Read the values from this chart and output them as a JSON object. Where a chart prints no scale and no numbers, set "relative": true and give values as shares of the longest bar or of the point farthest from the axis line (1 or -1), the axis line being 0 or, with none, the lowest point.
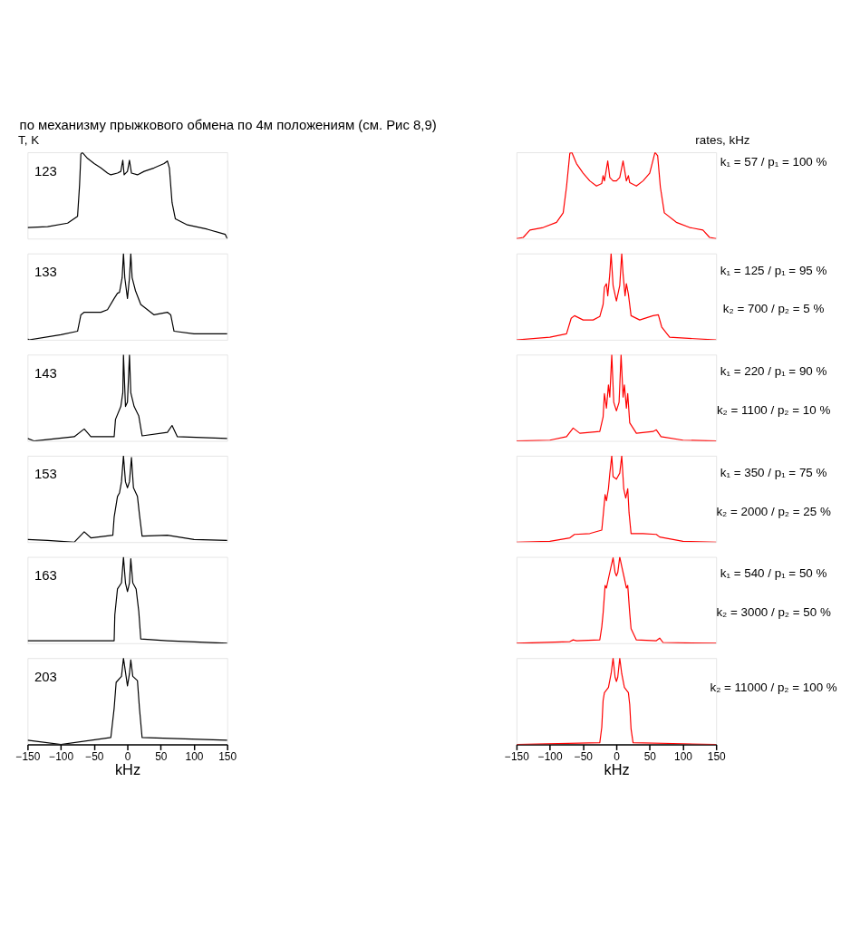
{
  "chart_data": [
    {
      "type": "line",
      "relative": true,
      "tick_labels": false,
      "xlim": [
        -150,
        150
      ],
      "annotations": [
        "по механизму прыжкового обмена по 4м положениям (см. Рис 8,9)",
        "T, K",
        "123"
      ],
      "x": [
        -150,
        -120,
        -90,
        -75,
        -72,
        -70,
        -68,
        -60,
        -50,
        -40,
        -30,
        -25,
        -15,
        -10,
        -7,
        -5,
        0,
        3,
        6,
        15,
        25,
        40,
        55,
        60,
        63,
        67,
        72,
        90,
        120,
        147,
        150
      ],
      "series": [
        {
          "color": "#000000",
          "values": [
            0.13,
            0.14,
            0.18,
            0.26,
            0.62,
            0.98,
            1.0,
            0.93,
            0.87,
            0.82,
            0.76,
            0.74,
            0.76,
            0.78,
            0.91,
            0.74,
            0.78,
            0.91,
            0.76,
            0.74,
            0.78,
            0.82,
            0.87,
            0.9,
            0.82,
            0.42,
            0.23,
            0.16,
            0.11,
            0.05,
            0.0
          ]
        }
      ]
    },
    {
      "type": "line",
      "relative": true,
      "tick_labels": false,
      "xlim": [
        -150,
        150
      ],
      "annotations": [
        "133"
      ],
      "x": [
        -150,
        -148,
        -100,
        -75,
        -70,
        -65,
        -40,
        -30,
        -20,
        -15,
        -12,
        -8,
        -6,
        -4,
        0,
        3,
        5,
        7,
        12,
        20,
        40,
        60,
        65,
        70,
        100,
        150
      ],
      "series": [
        {
          "color": "#000000",
          "values": [
            0.01,
            0.0,
            0.06,
            0.1,
            0.29,
            0.32,
            0.32,
            0.35,
            0.48,
            0.54,
            0.55,
            0.72,
            1.0,
            0.72,
            0.48,
            0.72,
            1.0,
            0.72,
            0.57,
            0.41,
            0.29,
            0.32,
            0.29,
            0.1,
            0.07,
            0.07
          ]
        }
      ]
    },
    {
      "type": "line",
      "relative": true,
      "tick_labels": false,
      "xlim": [
        -150,
        150
      ],
      "annotations": [
        "143"
      ],
      "x": [
        -150,
        -140,
        -80,
        -65,
        -55,
        -20,
        -18,
        -10,
        -7,
        -6,
        -3,
        0,
        3,
        5,
        10,
        17,
        22,
        60,
        67,
        75,
        150
      ],
      "series": [
        {
          "color": "#000000",
          "values": [
            0.03,
            0.0,
            0.05,
            0.14,
            0.05,
            0.05,
            0.25,
            0.4,
            0.56,
            1.0,
            0.4,
            0.45,
            1.0,
            0.56,
            0.4,
            0.29,
            0.06,
            0.1,
            0.18,
            0.05,
            0.03
          ]
        }
      ]
    },
    {
      "type": "line",
      "relative": true,
      "tick_labels": false,
      "xlim": [
        -150,
        150
      ],
      "annotations": [
        "153"
      ],
      "x": [
        -150,
        -120,
        -80,
        -65,
        -55,
        -22,
        -20,
        -15,
        -12,
        -9,
        -6,
        -3,
        0,
        3,
        6,
        9,
        15,
        18,
        22,
        60,
        100,
        150
      ],
      "series": [
        {
          "color": "#000000",
          "values": [
            0.03,
            0.02,
            0.0,
            0.12,
            0.05,
            0.08,
            0.29,
            0.53,
            0.57,
            0.7,
            1.0,
            0.7,
            0.63,
            0.7,
            0.98,
            0.63,
            0.53,
            0.32,
            0.07,
            0.08,
            0.03,
            0.02
          ]
        }
      ]
    },
    {
      "type": "line",
      "relative": true,
      "tick_labels": false,
      "xlim": [
        -150,
        150
      ],
      "annotations": [
        "163"
      ],
      "x": [
        -150,
        -50,
        -20,
        -19,
        -15,
        -9,
        -6,
        -3,
        0,
        3,
        5,
        8,
        13,
        17,
        20,
        60,
        150
      ],
      "series": [
        {
          "color": "#000000",
          "values": [
            0.03,
            0.03,
            0.03,
            0.33,
            0.63,
            0.7,
            1.0,
            0.7,
            0.6,
            0.7,
            0.98,
            0.7,
            0.63,
            0.37,
            0.05,
            0.03,
            0.0
          ]
        }
      ]
    },
    {
      "type": "line",
      "relative": true,
      "tick_labels": "x",
      "xlim": [
        -150,
        150
      ],
      "xticks": [
        -150,
        -100,
        -50,
        0,
        50,
        100,
        150
      ],
      "xlabel": "kHz",
      "annotations": [
        "203"
      ],
      "x": [
        -150,
        -100,
        -25,
        -20,
        -17,
        -9,
        -6,
        -3,
        0,
        3,
        5,
        8,
        15,
        18,
        22,
        150
      ],
      "series": [
        {
          "color": "#000000",
          "values": [
            0.05,
            0.0,
            0.08,
            0.42,
            0.72,
            0.79,
            1.0,
            0.84,
            0.68,
            0.82,
            0.98,
            0.79,
            0.74,
            0.42,
            0.08,
            0.05
          ]
        }
      ]
    },
    {
      "type": "line",
      "relative": true,
      "tick_labels": false,
      "xlim": [
        -150,
        150
      ],
      "annotations": [
        "rates, kHz",
        "k₁ = 57 / p₁ = 100 %"
      ],
      "x": [
        -150,
        -140,
        -130,
        -110,
        -90,
        -80,
        -75,
        -70,
        -67,
        -60,
        -50,
        -40,
        -30,
        -22,
        -20,
        -18,
        -13,
        -10,
        -5,
        0,
        5,
        10,
        15,
        18,
        20,
        30,
        40,
        50,
        58,
        62,
        66,
        72,
        90,
        110,
        130,
        140,
        150
      ],
      "series": [
        {
          "color": "#ff0000",
          "values": [
            0.0,
            0.015,
            0.1,
            0.13,
            0.19,
            0.3,
            0.6,
            0.99,
            1.0,
            0.87,
            0.76,
            0.67,
            0.61,
            0.64,
            0.73,
            0.67,
            0.9,
            0.71,
            0.67,
            0.67,
            0.71,
            0.9,
            0.67,
            0.73,
            0.65,
            0.61,
            0.67,
            0.76,
            1.0,
            0.96,
            0.6,
            0.3,
            0.19,
            0.13,
            0.1,
            0.015,
            0.0
          ]
        }
      ]
    },
    {
      "type": "line",
      "relative": true,
      "tick_labels": false,
      "xlim": [
        -150,
        150
      ],
      "annotations": [
        "k₁ = 125 / p₁ = 95 %",
        "k₂ = 700 / p₂ = 5 %"
      ],
      "x": [
        -150,
        -100,
        -75,
        -68,
        -63,
        -50,
        -35,
        -25,
        -20,
        -18,
        -15,
        -13,
        -10,
        -8,
        -5,
        0,
        5,
        8,
        10,
        13,
        15,
        18,
        22,
        35,
        55,
        63,
        68,
        80,
        150
      ],
      "series": [
        {
          "color": "#ff0000",
          "values": [
            0.0,
            0.03,
            0.07,
            0.25,
            0.28,
            0.23,
            0.23,
            0.27,
            0.41,
            0.61,
            0.65,
            0.51,
            0.76,
            1.0,
            0.63,
            0.45,
            0.63,
            1.0,
            0.76,
            0.51,
            0.65,
            0.53,
            0.28,
            0.23,
            0.28,
            0.29,
            0.15,
            0.03,
            0.0
          ]
        }
      ]
    },
    {
      "type": "line",
      "relative": true,
      "tick_labels": false,
      "xlim": [
        -150,
        150
      ],
      "annotations": [
        "k₁ = 220 / p₁ = 90 %",
        "k₂ = 1100 / p₂ = 10 %"
      ],
      "x": [
        -150,
        -100,
        -75,
        -65,
        -55,
        -25,
        -20,
        -18,
        -15,
        -12,
        -10,
        -7,
        -4,
        0,
        4,
        7,
        10,
        12,
        15,
        17,
        20,
        30,
        55,
        60,
        67,
        100,
        150
      ],
      "series": [
        {
          "color": "#ff0000",
          "values": [
            0.0,
            0.01,
            0.05,
            0.15,
            0.09,
            0.11,
            0.28,
            0.55,
            0.38,
            0.65,
            0.51,
            1.0,
            0.45,
            0.35,
            0.45,
            1.0,
            0.51,
            0.65,
            0.38,
            0.55,
            0.21,
            0.09,
            0.11,
            0.13,
            0.05,
            0.01,
            0.0
          ]
        }
      ]
    },
    {
      "type": "line",
      "relative": true,
      "tick_labels": false,
      "xlim": [
        -150,
        150
      ],
      "annotations": [
        "k₁ = 350 / p₁ = 75 %",
        "k₂ = 2000 / p₂ = 25 %"
      ],
      "x": [
        -150,
        -100,
        -70,
        -63,
        -40,
        -22,
        -20,
        -17,
        -15,
        -12,
        -10,
        -7,
        -5,
        0,
        5,
        8,
        11,
        14,
        17,
        19,
        22,
        40,
        60,
        65,
        100,
        150
      ],
      "series": [
        {
          "color": "#ff0000",
          "values": [
            0.0,
            0.01,
            0.05,
            0.09,
            0.1,
            0.14,
            0.3,
            0.55,
            0.48,
            0.62,
            0.79,
            1.0,
            0.76,
            0.73,
            0.8,
            1.0,
            0.62,
            0.51,
            0.62,
            0.34,
            0.1,
            0.1,
            0.09,
            0.06,
            0.01,
            0.0
          ]
        }
      ]
    },
    {
      "type": "line",
      "relative": true,
      "tick_labels": false,
      "xlim": [
        -150,
        150
      ],
      "annotations": [
        "k₁ = 540 / p₁ = 50 %",
        "k₂ = 3000 / p₂ = 50 %"
      ],
      "x": [
        -150,
        -70,
        -65,
        -60,
        -25,
        -22,
        -20,
        -17,
        -15,
        -12,
        -8,
        -5,
        -2,
        0,
        2,
        5,
        8,
        12,
        15,
        17,
        20,
        22,
        30,
        60,
        65,
        70,
        150
      ],
      "series": [
        {
          "color": "#ff0000",
          "values": [
            0.0,
            0.02,
            0.04,
            0.03,
            0.04,
            0.19,
            0.35,
            0.67,
            0.64,
            0.75,
            0.89,
            0.99,
            0.82,
            0.78,
            0.82,
            1.0,
            0.89,
            0.75,
            0.64,
            0.67,
            0.35,
            0.17,
            0.04,
            0.03,
            0.06,
            0.01,
            0.0
          ]
        }
      ]
    },
    {
      "type": "line",
      "relative": true,
      "tick_labels": "x",
      "xlim": [
        -150,
        150
      ],
      "xticks": [
        -150,
        -100,
        -50,
        0,
        50,
        100,
        150
      ],
      "xlabel": "kHz",
      "annotations": [
        "k₂ = 11000 / p₂ = 100 %"
      ],
      "x": [
        -150,
        -25,
        -22,
        -20,
        -18,
        -12,
        -8,
        -5,
        -2,
        0,
        2,
        5,
        8,
        12,
        18,
        20,
        22,
        25,
        150
      ],
      "series": [
        {
          "color": "#ff0000",
          "values": [
            0.0,
            0.02,
            0.2,
            0.51,
            0.6,
            0.66,
            0.82,
            1.0,
            0.78,
            0.73,
            0.78,
            1.0,
            0.82,
            0.66,
            0.6,
            0.46,
            0.18,
            0.02,
            0.0
          ]
        }
      ]
    }
  ]
}
